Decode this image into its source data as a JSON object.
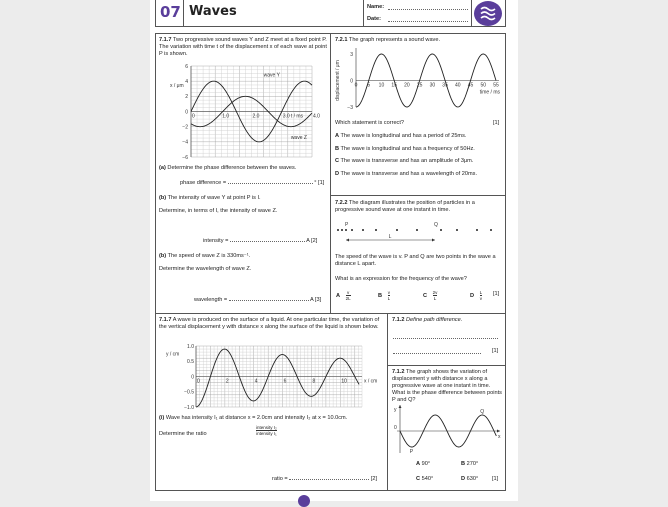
{
  "header": {
    "number": "07",
    "title": "Waves",
    "name_label": "Name:",
    "date_label": "Date:",
    "icon": "waves-icon",
    "accent": "#5a3e9b"
  },
  "q1": {
    "num": "7.1.7",
    "text": "Two progressive sound waves Y and Z meet at a fixed point P. The variation with time t of the displacement x of each wave at point P is shown.",
    "graph": {
      "ylabel": "x / μm",
      "xlabel": "t / ms",
      "yticks": [
        "6",
        "4",
        "2",
        "0",
        "−2",
        "−4",
        "−6"
      ],
      "xticks": [
        "0",
        "1.0",
        "2.0",
        "3.0",
        "4.0"
      ],
      "wave_y_label": "wave Y",
      "wave_z_label": "wave Z",
      "wave_y": {
        "amplitude": 4,
        "period_ms": 3.0
      },
      "wave_z": {
        "amplitude": 2,
        "period_ms": 3.0
      }
    },
    "a_label": "(a)",
    "a_text": "Determine the phase difference between the waves.",
    "a_answer": "phase difference =",
    "a_unit": "° [1]",
    "b_label": "(b)",
    "b_text1": "The intensity of wave Y at point P is I.",
    "b_text2": "Determine, in terms of I, the intensity of wave Z.",
    "b_answer": "intensity =",
    "b_unit": "A [2]",
    "c_label": "(b)",
    "c_text1": "The speed of wave Z is 330ms⁻¹.",
    "c_text2": "Determine the wavelength of wave Z.",
    "c_answer": "wavelength =",
    "c_unit": "A [3]"
  },
  "q2": {
    "num": "7.2.1",
    "text": "The graph represents a sound wave.",
    "graph": {
      "ylabel": "displacement / μm",
      "xlabel": "time / ms",
      "yticks": [
        "3",
        "0",
        "−3"
      ],
      "xticks": [
        "0",
        "5",
        "10",
        "15",
        "20",
        "25",
        "30",
        "35",
        "40",
        "45",
        "50",
        "55"
      ],
      "amplitude": 3,
      "period_ms": 20
    },
    "question": "Which statement is correct?",
    "marks": "[1]",
    "options": [
      {
        "letter": "A",
        "text": "The wave is longitudinal and has a period of 25ms."
      },
      {
        "letter": "B",
        "text": "The wave is longitudinal and has a frequency of 50Hz."
      },
      {
        "letter": "C",
        "text": "The wave is transverse and has an amplitude of 3μm."
      },
      {
        "letter": "D",
        "text": "The wave is transverse and has a wavelength of 20ms."
      }
    ]
  },
  "q3": {
    "num": "7.2.2",
    "text": "The diagram illustrates the position of particles in a progressive sound wave at one instant in time.",
    "p": "P",
    "q": "Q",
    "l": "L",
    "text2": "The speed of the wave is v. P and Q are two points in the wave a distance L apart.",
    "question": "What is an expression for the frequency of the wave?",
    "options": [
      {
        "letter": "A",
        "num": "v",
        "den": "2L"
      },
      {
        "letter": "B",
        "num": "v",
        "den": "L"
      },
      {
        "letter": "C",
        "num": "2v",
        "den": "L"
      },
      {
        "letter": "D",
        "num": "L",
        "den": "v"
      }
    ],
    "marks": "[1]"
  },
  "q4": {
    "num": "7.1.7",
    "text": "A wave is produced on the surface of a liquid. At one particular time, the variation of the vertical displacement y with distance x along the surface of the liquid is shown below.",
    "graph": {
      "ylabel": "y / cm",
      "xlabel": "x / cm",
      "yticks": [
        "1.0",
        "0.5",
        "0",
        "−0.5",
        "−1.0"
      ],
      "xticks": [
        "0",
        "2",
        "4",
        "6",
        "8",
        "10"
      ],
      "peaks": [
        [
          0,
          -1.0
        ],
        [
          2,
          0.9
        ],
        [
          4,
          -0.8
        ],
        [
          6,
          0.72
        ],
        [
          8,
          -0.65
        ],
        [
          10,
          0.6
        ]
      ]
    },
    "i_label": "(i)",
    "i_text": "Wave has intensity I₁ at distance x = 2.0cm and intensity I₂ at x = 10.0cm.",
    "ratio_prompt": "Determine the ratio",
    "ratio_num": "intensity I₂",
    "ratio_den": "intensity I₁",
    "answer": "ratio =",
    "marks": "[2]"
  },
  "q5": {
    "num": "7.1.2",
    "text": "Define path difference.",
    "marks": "[1]"
  },
  "q6": {
    "num": "7.1.2",
    "text": "The graph shows the variation of displacement y with distance x along a progressive wave at one instant in time. What is the phase difference between points P and Q?",
    "graph": {
      "ylabel": "y",
      "xlabel": "x",
      "origin": "0",
      "p": "P",
      "q": "Q"
    },
    "options": [
      {
        "letter": "A",
        "text": "90°"
      },
      {
        "letter": "B",
        "text": "270°"
      },
      {
        "letter": "C",
        "text": "540°"
      },
      {
        "letter": "D",
        "text": "630°"
      }
    ],
    "marks": "[1]"
  }
}
